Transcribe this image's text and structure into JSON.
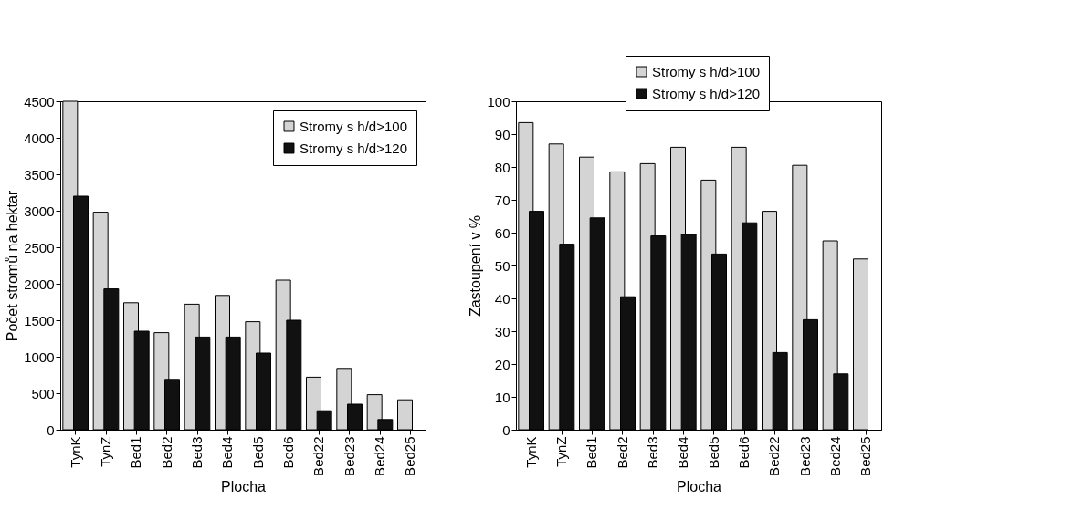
{
  "chart_data": [
    {
      "type": "bar",
      "xlabel": "Plocha",
      "ylabel": "Počet stromů na hektar",
      "categories": [
        "TynK",
        "TynZ",
        "Bed1",
        "Bed2",
        "Bed3",
        "Bed4",
        "Bed5",
        "Bed6",
        "Bed22",
        "Bed23",
        "Bed24",
        "Bed25"
      ],
      "series": [
        {
          "name": "Stromy s h/d>100",
          "color": "#d4d4d4",
          "values": [
            4500,
            2980,
            1740,
            1330,
            1720,
            1840,
            1480,
            2050,
            720,
            840,
            480,
            410
          ]
        },
        {
          "name": "Stromy s h/d>120",
          "color": "#111111",
          "values": [
            3200,
            1930,
            1350,
            690,
            1270,
            1270,
            1050,
            1500,
            260,
            350,
            140,
            null
          ]
        }
      ],
      "ylim": [
        0,
        4500
      ],
      "yticks": [
        0,
        500,
        1000,
        1500,
        2000,
        2500,
        3000,
        3500,
        4000,
        4500
      ],
      "grid": false,
      "legend": "top right"
    },
    {
      "type": "bar",
      "xlabel": "Plocha",
      "ylabel": "Zastoupení v %",
      "categories": [
        "TynK",
        "TynZ",
        "Bed1",
        "Bed2",
        "Bed3",
        "Bed4",
        "Bed5",
        "Bed6",
        "Bed22",
        "Bed23",
        "Bed24",
        "Bed25"
      ],
      "series": [
        {
          "name": "Stromy s h/d>100",
          "color": "#d4d4d4",
          "values": [
            93.5,
            87,
            83,
            78.5,
            81,
            86,
            76,
            86,
            66.5,
            80.5,
            57.5,
            52
          ]
        },
        {
          "name": "Stromy s h/d>120",
          "color": "#111111",
          "values": [
            66.5,
            56.5,
            64.5,
            40.5,
            59,
            59.5,
            53.5,
            63,
            23.5,
            33.5,
            17,
            null
          ]
        }
      ],
      "ylim": [
        0,
        100
      ],
      "yticks": [
        0,
        10,
        20,
        30,
        40,
        50,
        60,
        70,
        80,
        90,
        100
      ],
      "grid": false,
      "legend": "top"
    }
  ]
}
